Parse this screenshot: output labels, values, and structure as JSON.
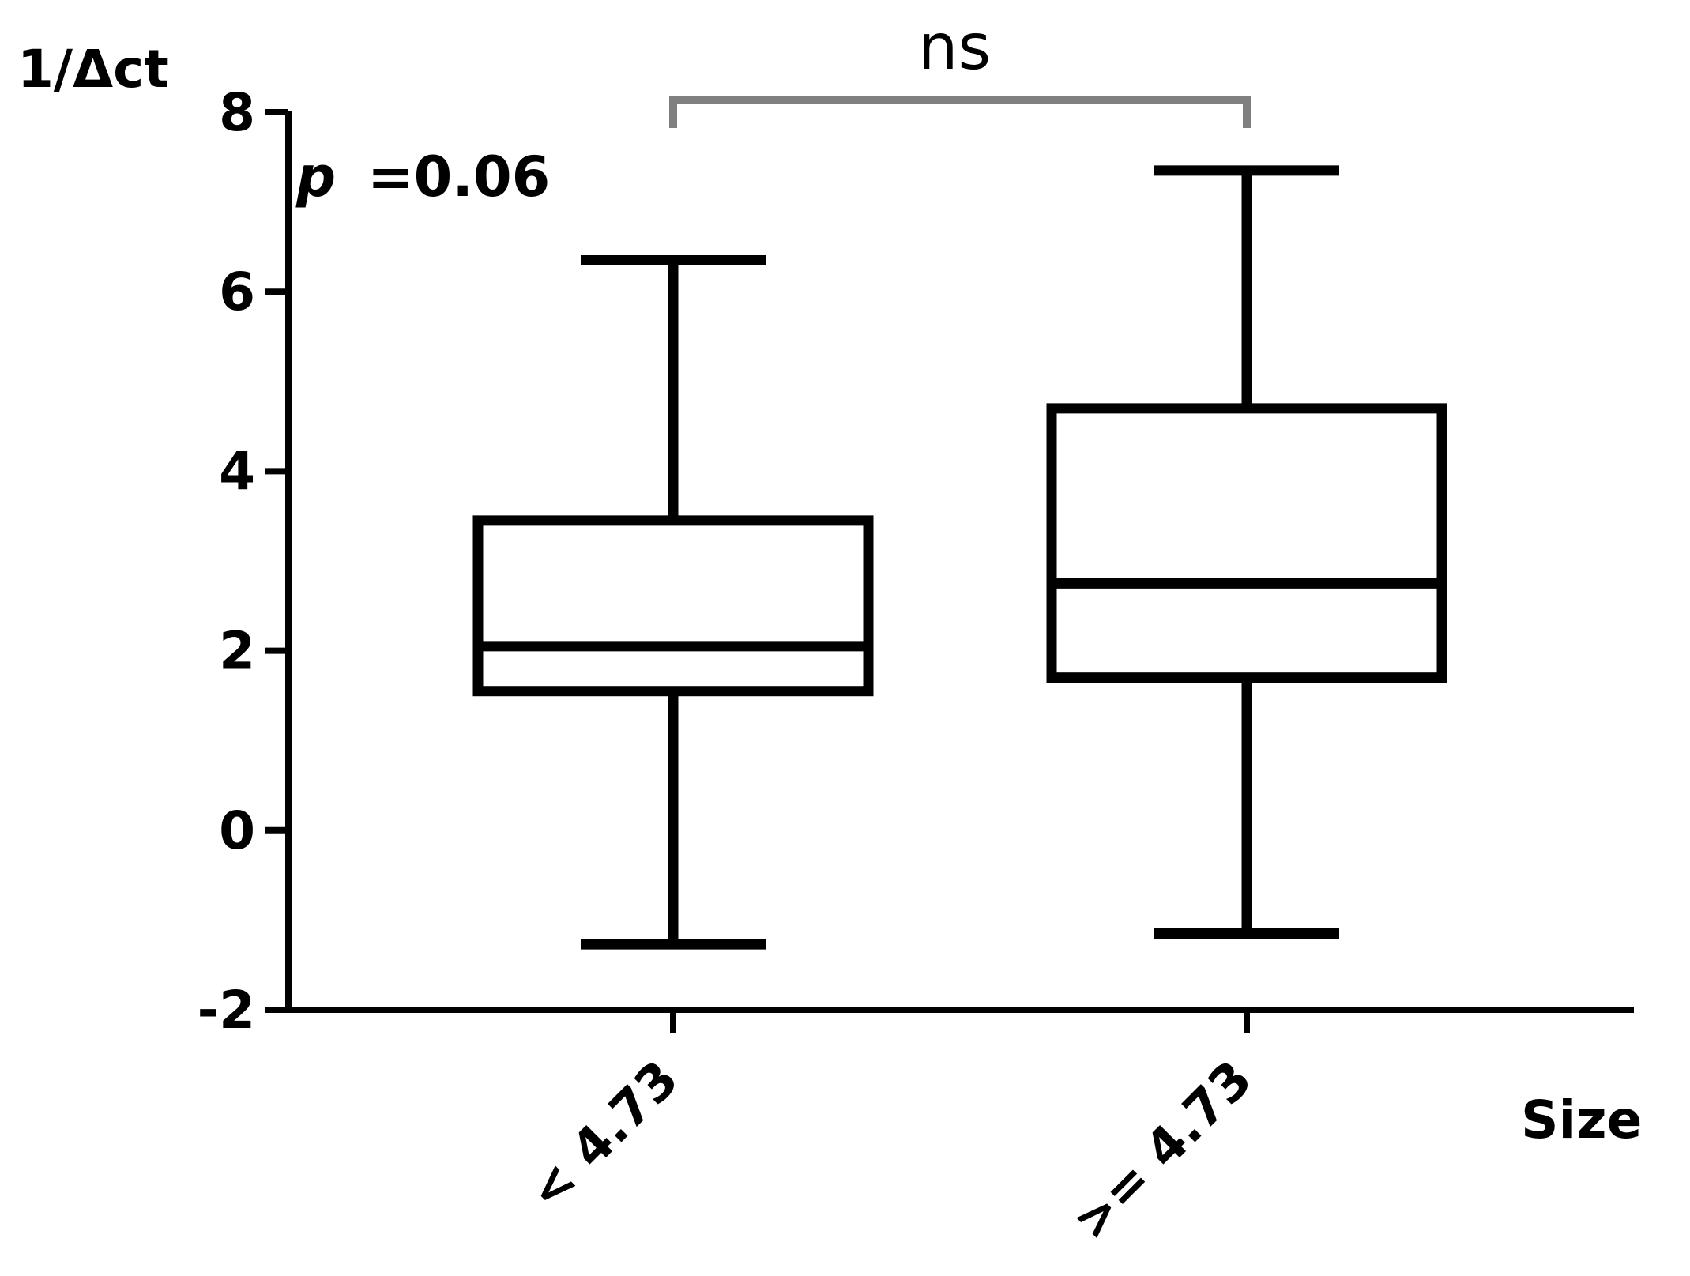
{
  "chart_data": {
    "type": "box",
    "ylabel": "1/Δct",
    "xlabel": "Size",
    "ylim": [
      -2,
      8
    ],
    "yticks": [
      -2,
      0,
      2,
      4,
      6,
      8
    ],
    "ytick_labels": [
      "-2",
      "0",
      "2",
      "4",
      "6",
      "8"
    ],
    "categories": [
      "< 4.73",
      ">= 4.73"
    ],
    "boxes": [
      {
        "category": "< 4.73",
        "min": -1.27,
        "q1": 1.55,
        "median": 2.05,
        "q3": 3.45,
        "max": 6.35
      },
      {
        "category": ">= 4.73",
        "min": -1.15,
        "q1": 1.7,
        "median": 2.75,
        "q3": 4.7,
        "max": 7.35
      }
    ],
    "annotations": {
      "p_prefix": "p",
      "p_value": "=0.06",
      "significance": "ns"
    },
    "colors": {
      "axis": "#000000",
      "box": "#000000",
      "bracket": "#808080",
      "significance": "#707070"
    },
    "grid": false
  }
}
